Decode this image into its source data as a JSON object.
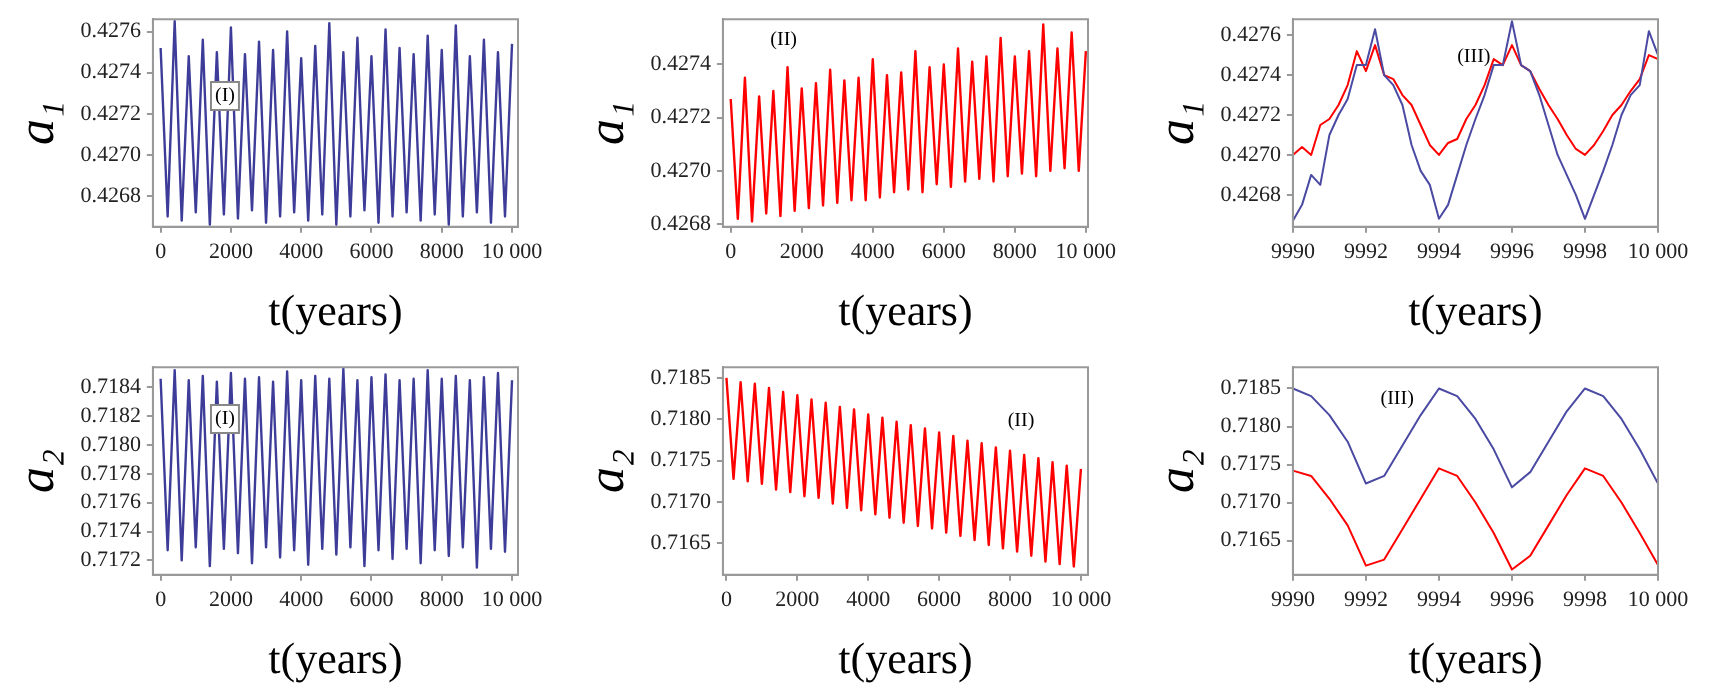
{
  "chart_data": [
    {
      "type": "line",
      "xlabel": "t(years)",
      "ylabel": "a₁",
      "annotations": [
        "(I)"
      ],
      "legend": false,
      "grid": false,
      "marker": "none",
      "line_style": "solid",
      "xlim": [
        -220,
        10170
      ],
      "xticks": [
        0,
        2000,
        4000,
        6000,
        8000,
        10000
      ],
      "ylim": [
        0.42665,
        0.42766
      ],
      "yticks": [
        0.4268,
        {
          "value": 0.427,
          "label": "0.4270"
        },
        0.4272,
        0.4274,
        0.4276
      ],
      "series": [
        {
          "color": "#3d3d99",
          "x": [
            0,
            200,
            400,
            600,
            800,
            1000,
            1200,
            1400,
            1600,
            1800,
            2000,
            2200,
            2400,
            2600,
            2800,
            3000,
            3200,
            3400,
            3600,
            3800,
            4000,
            4200,
            4400,
            4600,
            4800,
            5000,
            5200,
            5400,
            5600,
            5800,
            6000,
            6200,
            6400,
            6600,
            6800,
            7000,
            7200,
            7400,
            7600,
            7800,
            8000,
            8200,
            8400,
            8600,
            8800,
            9000,
            9200,
            9400,
            9600,
            9800,
            10000
          ],
          "values": [
            0.42752,
            0.4267,
            0.42765,
            0.42668,
            0.42748,
            0.42672,
            0.42756,
            0.42666,
            0.4275,
            0.42671,
            0.42762,
            0.42669,
            0.42749,
            0.42673,
            0.42755,
            0.42667,
            0.42751,
            0.4267,
            0.4276,
            0.42672,
            0.42747,
            0.42668,
            0.42753,
            0.42671,
            0.42764,
            0.42666,
            0.4275,
            0.4267,
            0.42757,
            0.42673,
            0.42748,
            0.42667,
            0.42761,
            0.4267,
            0.42752,
            0.42672,
            0.42749,
            0.42668,
            0.42758,
            0.42671,
            0.42751,
            0.42666,
            0.42763,
            0.4267,
            0.42748,
            0.42672,
            0.42756,
            0.42667,
            0.4275,
            0.4267,
            0.42754
          ]
        }
      ]
    },
    {
      "type": "line",
      "xlabel": "t(years)",
      "ylabel": "a₁",
      "annotations": [
        "(II)"
      ],
      "legend": false,
      "grid": false,
      "marker": "none",
      "line_style": "solid",
      "xlim": [
        -220,
        10060
      ],
      "xticks": [
        0,
        2000,
        4000,
        6000,
        8000,
        10000
      ],
      "ylim": [
        0.42679,
        0.42757
      ],
      "yticks": [
        0.4268,
        {
          "value": 0.427,
          "label": "0.4270"
        },
        0.4272,
        0.4274
      ],
      "series": [
        {
          "color": "#ff0000",
          "x": [
            0,
            200,
            400,
            600,
            800,
            1000,
            1200,
            1400,
            1600,
            1800,
            2000,
            2200,
            2400,
            2600,
            2800,
            3000,
            3200,
            3400,
            3600,
            3800,
            4000,
            4200,
            4400,
            4600,
            4800,
            5000,
            5200,
            5400,
            5600,
            5800,
            6000,
            6200,
            6400,
            6600,
            6800,
            7000,
            7200,
            7400,
            7600,
            7800,
            8000,
            8200,
            8400,
            8600,
            8800,
            9000,
            9200,
            9400,
            9600,
            9800,
            10000
          ],
          "values": [
            0.42727,
            0.42682,
            0.42735,
            0.42681,
            0.42728,
            0.42684,
            0.4273,
            0.42683,
            0.42739,
            0.42685,
            0.42731,
            0.42686,
            0.42733,
            0.42687,
            0.42738,
            0.42688,
            0.42734,
            0.42689,
            0.42735,
            0.42689,
            0.42742,
            0.4269,
            0.42736,
            0.42692,
            0.42737,
            0.42693,
            0.42745,
            0.42692,
            0.42739,
            0.42695,
            0.4274,
            0.42694,
            0.42746,
            0.42696,
            0.42741,
            0.42697,
            0.42743,
            0.42696,
            0.4275,
            0.42698,
            0.42743,
            0.42699,
            0.42745,
            0.42698,
            0.42755,
            0.427,
            0.42746,
            0.42701,
            0.42752,
            0.427,
            0.42745
          ]
        }
      ]
    },
    {
      "type": "line",
      "xlabel": "t(years)",
      "ylabel": "a₁",
      "annotations": [
        "(III)"
      ],
      "legend": false,
      "grid": false,
      "marker": "none",
      "line_style": "solid",
      "xlim": [
        9990,
        10000
      ],
      "xticks": [
        9990,
        9992,
        9994,
        9996,
        9998,
        10000
      ],
      "ylim": [
        0.42664,
        0.42768
      ],
      "yticks": [
        0.4268,
        {
          "value": 0.427,
          "label": "0.4270"
        },
        0.4272,
        0.4274,
        0.4276
      ],
      "series": [
        {
          "color": "#4a4aa3",
          "x": [
            9990,
            9990.25,
            9990.5,
            9990.75,
            9991,
            9991.25,
            9991.5,
            9991.75,
            9992,
            9992.25,
            9992.5,
            9992.75,
            9993,
            9993.25,
            9993.5,
            9993.75,
            9994,
            9994.25,
            9994.5,
            9994.75,
            9995,
            9995.25,
            9995.5,
            9995.75,
            9996,
            9996.25,
            9996.5,
            9996.75,
            9997,
            9997.25,
            9997.5,
            9997.75,
            9998,
            9998.25,
            9998.5,
            9998.75,
            9999,
            9999.25,
            9999.5,
            9999.75,
            10000
          ],
          "values": [
            0.42667,
            0.42675,
            0.4269,
            0.42685,
            0.4271,
            0.4272,
            0.42728,
            0.42745,
            0.42745,
            0.42763,
            0.4274,
            0.42735,
            0.42725,
            0.42705,
            0.42692,
            0.42685,
            0.42668,
            0.42675,
            0.4269,
            0.42705,
            0.42718,
            0.4273,
            0.42745,
            0.42745,
            0.42767,
            0.42745,
            0.42742,
            0.4273,
            0.42715,
            0.427,
            0.4269,
            0.4268,
            0.42668,
            0.4268,
            0.42692,
            0.42705,
            0.4272,
            0.4273,
            0.42735,
            0.42762,
            0.4275
          ]
        },
        {
          "color": "#ff0000",
          "x": [
            9990,
            9990.25,
            9990.5,
            9990.75,
            9991,
            9991.25,
            9991.5,
            9991.75,
            9992,
            9992.25,
            9992.5,
            9992.75,
            9993,
            9993.25,
            9993.5,
            9993.75,
            9994,
            9994.25,
            9994.5,
            9994.75,
            9995,
            9995.25,
            9995.5,
            9995.75,
            9996,
            9996.25,
            9996.5,
            9996.75,
            9997,
            9997.25,
            9997.5,
            9997.75,
            9998,
            9998.25,
            9998.5,
            9998.75,
            9999,
            9999.25,
            9999.5,
            9999.75,
            10000
          ],
          "values": [
            0.427,
            0.42704,
            0.427,
            0.42715,
            0.42718,
            0.42725,
            0.42735,
            0.42752,
            0.42742,
            0.42755,
            0.4274,
            0.42738,
            0.4273,
            0.42725,
            0.42715,
            0.42705,
            0.427,
            0.42706,
            0.42708,
            0.42718,
            0.42725,
            0.42735,
            0.42748,
            0.42745,
            0.42755,
            0.42745,
            0.42742,
            0.42733,
            0.42725,
            0.42718,
            0.4271,
            0.42703,
            0.427,
            0.42705,
            0.42712,
            0.4272,
            0.42725,
            0.42732,
            0.42738,
            0.4275,
            0.42748
          ]
        }
      ]
    },
    {
      "type": "line",
      "xlabel": "t(years)",
      "ylabel": "a₂",
      "annotations": [
        "(I)"
      ],
      "legend": false,
      "grid": false,
      "marker": "none",
      "line_style": "solid",
      "xlim": [
        -220,
        10170
      ],
      "xticks": [
        0,
        2000,
        4000,
        6000,
        8000,
        10000
      ],
      "ylim": [
        0.7171,
        0.71854
      ],
      "yticks": [
        0.7172,
        0.7174,
        0.7176,
        0.7178,
        {
          "value": 0.718,
          "label": "0.7180"
        },
        0.7182,
        0.7184
      ],
      "series": [
        {
          "color": "#3d3d99",
          "x": [
            0,
            200,
            400,
            600,
            800,
            1000,
            1200,
            1400,
            1600,
            1800,
            2000,
            2200,
            2400,
            2600,
            2800,
            3000,
            3200,
            3400,
            3600,
            3800,
            4000,
            4200,
            4400,
            4600,
            4800,
            5000,
            5200,
            5400,
            5600,
            5800,
            6000,
            6200,
            6400,
            6600,
            6800,
            7000,
            7200,
            7400,
            7600,
            7800,
            8000,
            8200,
            8400,
            8600,
            8800,
            9000,
            9200,
            9400,
            9600,
            9800,
            10000
          ],
          "values": [
            0.71846,
            0.71727,
            0.71852,
            0.7172,
            0.71845,
            0.71729,
            0.71848,
            0.71716,
            0.71844,
            0.71728,
            0.7185,
            0.71725,
            0.71846,
            0.71718,
            0.71847,
            0.71729,
            0.71844,
            0.71722,
            0.71851,
            0.71727,
            0.71845,
            0.71717,
            0.71848,
            0.71728,
            0.71846,
            0.71724,
            0.71853,
            0.71729,
            0.71845,
            0.71716,
            0.71847,
            0.71727,
            0.71849,
            0.71721,
            0.71845,
            0.71728,
            0.71846,
            0.71718,
            0.71852,
            0.71727,
            0.71846,
            0.71723,
            0.71848,
            0.71729,
            0.71845,
            0.71715,
            0.71847,
            0.71728,
            0.7185,
            0.71726,
            0.71845
          ]
        }
      ]
    },
    {
      "type": "line",
      "xlabel": "t(years)",
      "ylabel": "a₂",
      "annotations": [
        "(II)"
      ],
      "legend": false,
      "grid": false,
      "marker": "none",
      "line_style": "solid",
      "xlim": [
        -100,
        10200
      ],
      "xticks": [
        0,
        2000,
        4000,
        6000,
        8000,
        10000
      ],
      "ylim": [
        0.71612,
        0.71863
      ],
      "yticks": [
        0.7165,
        {
          "value": 0.717,
          "label": "0.7170"
        },
        0.7175,
        {
          "value": 0.718,
          "label": "0.7180"
        },
        0.7185
      ],
      "series": [
        {
          "color": "#ff0000",
          "x": [
            0,
            200,
            400,
            600,
            800,
            1000,
            1200,
            1400,
            1600,
            1800,
            2000,
            2200,
            2400,
            2600,
            2800,
            3000,
            3200,
            3400,
            3600,
            3800,
            4000,
            4200,
            4400,
            4600,
            4800,
            5000,
            5200,
            5400,
            5600,
            5800,
            6000,
            6200,
            6400,
            6600,
            6800,
            7000,
            7200,
            7400,
            7600,
            7800,
            8000,
            8200,
            8400,
            8600,
            8800,
            9000,
            9200,
            9400,
            9600,
            9800,
            10000
          ],
          "values": [
            0.7185,
            0.71728,
            0.71845,
            0.71725,
            0.71843,
            0.71722,
            0.71838,
            0.71715,
            0.71833,
            0.71712,
            0.71829,
            0.71707,
            0.71824,
            0.71705,
            0.7182,
            0.71698,
            0.71815,
            0.71693,
            0.71812,
            0.7169,
            0.71806,
            0.71685,
            0.71802,
            0.71681,
            0.71797,
            0.71675,
            0.71793,
            0.71671,
            0.71789,
            0.71668,
            0.71784,
            0.71663,
            0.7178,
            0.71659,
            0.71774,
            0.71654,
            0.71771,
            0.71648,
            0.71766,
            0.71644,
            0.71762,
            0.7164,
            0.71757,
            0.71635,
            0.71753,
            0.71628,
            0.71748,
            0.71625,
            0.71744,
            0.71622,
            0.7174
          ]
        }
      ]
    },
    {
      "type": "line",
      "xlabel": "t(years)",
      "ylabel": "a₂",
      "annotations": [
        "(III)"
      ],
      "legend": false,
      "grid": false,
      "marker": "none",
      "line_style": "solid",
      "xlim": [
        9990,
        10000
      ],
      "xticks": [
        9990,
        9992,
        9994,
        9996,
        9998,
        10000
      ],
      "ylim": [
        0.71605,
        0.71878
      ],
      "yticks": [
        0.7165,
        {
          "value": 0.717,
          "label": "0.7170"
        },
        0.7175,
        {
          "value": 0.718,
          "label": "0.7180"
        },
        0.7185
      ],
      "series": [
        {
          "color": "#4a4aa3",
          "x": [
            9990,
            9990.5,
            9991,
            9991.5,
            9992,
            9992.5,
            9993,
            9993.5,
            9994,
            9994.5,
            9995,
            9995.5,
            9996,
            9996.5,
            9997,
            9997.5,
            9998,
            9998.5,
            9999,
            9999.5,
            10000
          ],
          "values": [
            0.7185,
            0.7184,
            0.71815,
            0.7178,
            0.71725,
            0.71735,
            0.71775,
            0.71815,
            0.7185,
            0.7184,
            0.7181,
            0.7177,
            0.7172,
            0.7174,
            0.7178,
            0.7182,
            0.7185,
            0.7184,
            0.7181,
            0.7177,
            0.71725
          ]
        },
        {
          "color": "#ff0000",
          "x": [
            9990,
            9990.5,
            9991,
            9991.5,
            9992,
            9992.5,
            9993,
            9993.5,
            9994,
            9994.5,
            9995,
            9995.5,
            9996,
            9996.5,
            9997,
            9997.5,
            9998,
            9998.5,
            9999,
            9999.5,
            10000
          ],
          "values": [
            0.71742,
            0.71735,
            0.71705,
            0.7167,
            0.71617,
            0.71625,
            0.71665,
            0.71705,
            0.71745,
            0.71735,
            0.717,
            0.7166,
            0.71612,
            0.7163,
            0.7167,
            0.7171,
            0.71745,
            0.71735,
            0.717,
            0.7166,
            0.71618
          ]
        }
      ]
    }
  ]
}
